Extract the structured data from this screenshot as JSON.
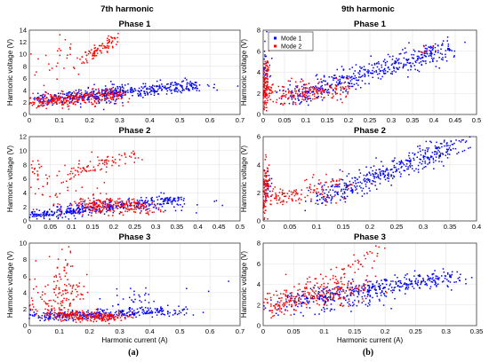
{
  "figure": {
    "column_titles": [
      "7th harmonic",
      "9th harmonic"
    ],
    "captions": [
      "(a)",
      "(b)"
    ]
  },
  "colors": {
    "mode1": "#0000ff",
    "mode2": "#ff0000"
  },
  "chart_data": [
    {
      "type": "scatter",
      "title": "Phase 1",
      "xlabel": "",
      "ylabel": "Harmonic voltage (V)",
      "xlim": [
        0,
        0.7
      ],
      "ylim": [
        0,
        14
      ],
      "xticks": [
        0,
        0.1,
        0.2,
        0.3,
        0.4,
        0.5,
        0.6,
        0.7
      ],
      "yticks": [
        0,
        2,
        4,
        6,
        8,
        10,
        12,
        14
      ],
      "series": [
        {
          "name": "Mode 1",
          "clusters": [
            {
              "x": [
                0.02,
                0.56
              ],
              "y": [
                2.5,
                4.8
              ],
              "sx": 0.02,
              "sy": 0.5,
              "n": 420
            },
            {
              "x": [
                0.15,
                0.3
              ],
              "y": [
                2.2,
                3.8
              ],
              "sx": 0.02,
              "sy": 1.0,
              "n": 80
            },
            {
              "x": [
                0.6,
                0.68
              ],
              "y": [
                4.5,
                5.0
              ],
              "sx": 0.02,
              "sy": 0.4,
              "n": 6
            }
          ]
        },
        {
          "name": "Mode 2",
          "clusters": [
            {
              "x": [
                0.0,
                0.3
              ],
              "y": [
                2.0,
                3.3
              ],
              "sx": 0.02,
              "sy": 0.6,
              "n": 300
            },
            {
              "x": [
                0.17,
                0.29
              ],
              "y": [
                8.5,
                13.0
              ],
              "sx": 0.01,
              "sy": 0.5,
              "n": 90
            },
            {
              "x": [
                0.0,
                0.15
              ],
              "y": [
                6.0,
                11.0
              ],
              "sx": 0.03,
              "sy": 1.5,
              "n": 30
            }
          ]
        }
      ]
    },
    {
      "type": "scatter",
      "title": "Phase 2",
      "xlabel": "",
      "ylabel": "Harmonic voltage (V)",
      "xlim": [
        0,
        0.5
      ],
      "ylim": [
        0,
        12
      ],
      "xticks": [
        0,
        0.05,
        0.1,
        0.15,
        0.2,
        0.25,
        0.3,
        0.35,
        0.4,
        0.45,
        0.5
      ],
      "yticks": [
        0,
        2,
        4,
        6,
        8,
        10,
        12
      ],
      "series": [
        {
          "name": "Mode 1",
          "clusters": [
            {
              "x": [
                0.0,
                0.35
              ],
              "y": [
                0.7,
                3.0
              ],
              "sx": 0.02,
              "sy": 0.4,
              "n": 400
            },
            {
              "x": [
                0.3,
                0.45
              ],
              "y": [
                1.5,
                2.5
              ],
              "sx": 0.03,
              "sy": 0.5,
              "n": 10
            }
          ]
        },
        {
          "name": "Mode 2",
          "clusters": [
            {
              "x": [
                0.13,
                0.27
              ],
              "y": [
                2.5,
                2.0
              ],
              "sx": 0.03,
              "sy": 0.6,
              "n": 230
            },
            {
              "x": [
                0.1,
                0.26
              ],
              "y": [
                7.0,
                9.5
              ],
              "sx": 0.01,
              "sy": 0.5,
              "n": 80
            },
            {
              "x": [
                0.0,
                0.12
              ],
              "y": [
                3.0,
                6.0
              ],
              "sx": 0.03,
              "sy": 2.0,
              "n": 50
            },
            {
              "x": [
                0.0,
                0.02
              ],
              "y": [
                7.0,
                8.0
              ],
              "sx": 0.01,
              "sy": 0.8,
              "n": 20
            }
          ]
        }
      ]
    },
    {
      "type": "scatter",
      "title": "Phase 3",
      "xlabel": "Harmonic current (A)",
      "ylabel": "Harmonic voltage (V)",
      "xlim": [
        0,
        0.7
      ],
      "ylim": [
        0,
        10
      ],
      "xticks": [
        0,
        0.1,
        0.2,
        0.3,
        0.4,
        0.5,
        0.6,
        0.7
      ],
      "yticks": [
        0,
        2,
        4,
        6,
        8,
        10
      ],
      "series": [
        {
          "name": "Mode 1",
          "clusters": [
            {
              "x": [
                0.0,
                0.5
              ],
              "y": [
                1.0,
                1.8
              ],
              "sx": 0.03,
              "sy": 0.3,
              "n": 320
            },
            {
              "x": [
                0.3,
                0.4
              ],
              "y": [
                2.5,
                4.0
              ],
              "sx": 0.03,
              "sy": 0.6,
              "n": 30
            },
            {
              "x": [
                0.55,
                0.62
              ],
              "y": [
                4.5,
                5.5
              ],
              "sx": 0.02,
              "sy": 0.3,
              "n": 3
            }
          ]
        },
        {
          "name": "Mode 2",
          "clusters": [
            {
              "x": [
                0.1,
                0.3
              ],
              "y": [
                1.3,
                1.0
              ],
              "sx": 0.03,
              "sy": 0.3,
              "n": 220
            },
            {
              "x": [
                0.05,
                0.17
              ],
              "y": [
                2.0,
                4.5
              ],
              "sx": 0.02,
              "sy": 0.7,
              "n": 90
            },
            {
              "x": [
                0.08,
                0.14
              ],
              "y": [
                4.0,
                8.5
              ],
              "sx": 0.02,
              "sy": 1.0,
              "n": 45
            },
            {
              "x": [
                0.0,
                0.03
              ],
              "y": [
                2.0,
                5.5
              ],
              "sx": 0.01,
              "sy": 1.0,
              "n": 20
            }
          ]
        }
      ]
    },
    {
      "type": "scatter",
      "title": "Phase 1",
      "xlabel": "",
      "ylabel": "Harmonic voltage (V)",
      "xlim": [
        0,
        0.5
      ],
      "ylim": [
        0,
        8
      ],
      "xticks": [
        0,
        0.05,
        0.1,
        0.15,
        0.2,
        0.25,
        0.3,
        0.35,
        0.4,
        0.45,
        0.5
      ],
      "yticks": [
        0,
        2,
        4,
        6,
        8
      ],
      "legend": {
        "entries": [
          "Mode 1",
          "Mode 2"
        ],
        "location": "top-left"
      },
      "series": [
        {
          "name": "Mode 1",
          "clusters": [
            {
              "x": [
                0.05,
                0.43
              ],
              "y": [
                1.5,
                6.2
              ],
              "sx": 0.02,
              "sy": 0.5,
              "n": 460
            },
            {
              "x": [
                0.0,
                0.01
              ],
              "y": [
                2.0,
                5.0
              ],
              "sx": 0.005,
              "sy": 1.5,
              "n": 40
            },
            {
              "x": [
                0.44,
                0.47
              ],
              "y": [
                6.5,
                7.0
              ],
              "sx": 0.01,
              "sy": 0.3,
              "n": 3
            }
          ]
        },
        {
          "name": "Mode 2",
          "clusters": [
            {
              "x": [
                0.0,
                0.2
              ],
              "y": [
                1.8,
                2.5
              ],
              "sx": 0.02,
              "sy": 0.5,
              "n": 190
            },
            {
              "x": [
                0.0,
                0.01
              ],
              "y": [
                1.0,
                5.0
              ],
              "sx": 0.005,
              "sy": 1.0,
              "n": 140
            },
            {
              "x": [
                0.37,
                0.41
              ],
              "y": [
                5.8,
                6.2
              ],
              "sx": 0.01,
              "sy": 0.2,
              "n": 8
            }
          ]
        }
      ]
    },
    {
      "type": "scatter",
      "title": "Phase 2",
      "xlabel": "",
      "ylabel": "Harmonic voltage (V)",
      "xlim": [
        0,
        0.4
      ],
      "ylim": [
        0,
        6
      ],
      "xticks": [
        0,
        0.05,
        0.1,
        0.15,
        0.2,
        0.25,
        0.3,
        0.35,
        0.4
      ],
      "yticks": [
        0,
        2,
        4,
        6
      ],
      "series": [
        {
          "name": "Mode 1",
          "clusters": [
            {
              "x": [
                0.1,
                0.37
              ],
              "y": [
                1.5,
                5.5
              ],
              "sx": 0.015,
              "sy": 0.4,
              "n": 420
            },
            {
              "x": [
                0.0,
                0.01
              ],
              "y": [
                1.5,
                3.0
              ],
              "sx": 0.005,
              "sy": 0.6,
              "n": 30
            }
          ]
        },
        {
          "name": "Mode 2",
          "clusters": [
            {
              "x": [
                0.0,
                0.15
              ],
              "y": [
                1.5,
                2.5
              ],
              "sx": 0.02,
              "sy": 0.4,
              "n": 140
            },
            {
              "x": [
                0.0,
                0.008
              ],
              "y": [
                1.0,
                3.5
              ],
              "sx": 0.003,
              "sy": 0.6,
              "n": 110
            }
          ]
        }
      ]
    },
    {
      "type": "scatter",
      "title": "Phase 3",
      "xlabel": "Harmonic current (A)",
      "ylabel": "Harmonic voltage (V)",
      "xlim": [
        0,
        0.35
      ],
      "ylim": [
        0,
        8
      ],
      "xticks": [
        0,
        0.05,
        0.1,
        0.15,
        0.2,
        0.25,
        0.3,
        0.35
      ],
      "yticks": [
        0,
        2,
        4,
        6,
        8
      ],
      "series": [
        {
          "name": "Mode 1",
          "clusters": [
            {
              "x": [
                0.05,
                0.32
              ],
              "y": [
                2.5,
                4.8
              ],
              "sx": 0.02,
              "sy": 0.4,
              "n": 380
            },
            {
              "x": [
                0.0,
                0.2
              ],
              "y": [
                1.5,
                2.5
              ],
              "sx": 0.03,
              "sy": 0.5,
              "n": 80
            }
          ]
        },
        {
          "name": "Mode 2",
          "clusters": [
            {
              "x": [
                0.0,
                0.16
              ],
              "y": [
                2.2,
                3.8
              ],
              "sx": 0.02,
              "sy": 0.6,
              "n": 230
            },
            {
              "x": [
                0.1,
                0.19
              ],
              "y": [
                4.0,
                7.5
              ],
              "sx": 0.01,
              "sy": 0.6,
              "n": 50
            },
            {
              "x": [
                0.0,
                0.05
              ],
              "y": [
                1.0,
                2.5
              ],
              "sx": 0.02,
              "sy": 0.5,
              "n": 40
            }
          ]
        }
      ]
    }
  ]
}
